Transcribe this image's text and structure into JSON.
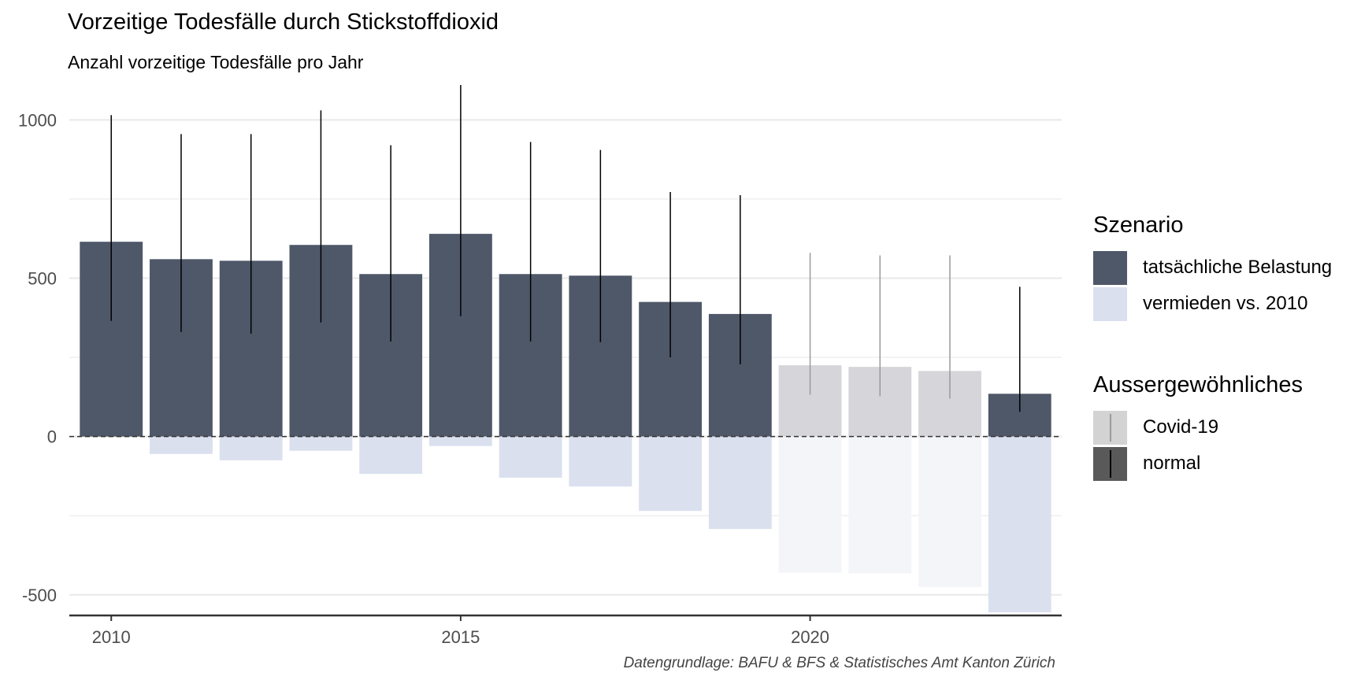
{
  "title": "Vorzeitige Todesfälle durch Stickstoffdioxid",
  "subtitle": "Anzahl vorzeitige Todesfälle pro Jahr",
  "caption": "Datengrundlage: BAFU & BFS & Statistisches Amt Kanton Zürich",
  "legend": {
    "szenario": {
      "title": "Szenario",
      "items": [
        {
          "label": "tatsächliche Belastung",
          "color": "#4f5869"
        },
        {
          "label": "vermieden vs. 2010",
          "color": "#dbe0ef"
        }
      ]
    },
    "ausser": {
      "title": "Aussergewöhnliches",
      "items": [
        {
          "label": "Covid-19",
          "fill": "#d3d3d3",
          "line": "#9a9a9a"
        },
        {
          "label": "normal",
          "fill": "#595959",
          "line": "#000000"
        }
      ]
    }
  },
  "chart_data": {
    "type": "bar",
    "x": [
      2010,
      2011,
      2012,
      2013,
      2014,
      2015,
      2016,
      2017,
      2018,
      2019,
      2020,
      2021,
      2022,
      2023
    ],
    "series": [
      {
        "name": "tatsächliche Belastung",
        "values": [
          615,
          560,
          555,
          605,
          513,
          640,
          513,
          508,
          425,
          387,
          225,
          220,
          207,
          135
        ]
      },
      {
        "name": "vermieden vs. 2010",
        "values": [
          0,
          -55,
          -75,
          -45,
          -118,
          -30,
          -130,
          -158,
          -235,
          -292,
          -430,
          -432,
          -475,
          -555
        ]
      }
    ],
    "error_low": [
      365,
      330,
      325,
      360,
      300,
      380,
      300,
      298,
      250,
      228,
      132,
      127,
      120,
      78
    ],
    "error_high": [
      1015,
      955,
      955,
      1030,
      920,
      1110,
      930,
      905,
      772,
      762,
      580,
      572,
      572,
      473
    ],
    "covid_years": [
      2020,
      2021,
      2022
    ],
    "y_ticks": [
      -500,
      0,
      500,
      1000
    ],
    "x_ticks": [
      2010,
      2015,
      2020
    ],
    "ylim": [
      -565,
      1110
    ],
    "xlim": [
      2009.4,
      2023.6
    ],
    "colors": {
      "actual": "#4f5869",
      "avoided": "#dbe0ef",
      "actual_covid": "#d6d6da",
      "avoided_covid": "#f4f5f9",
      "grid": "#ebebeb",
      "whisker_normal": "#000000",
      "whisker_covid": "#9a9a9a"
    },
    "grid": true,
    "legend_position": "right"
  }
}
